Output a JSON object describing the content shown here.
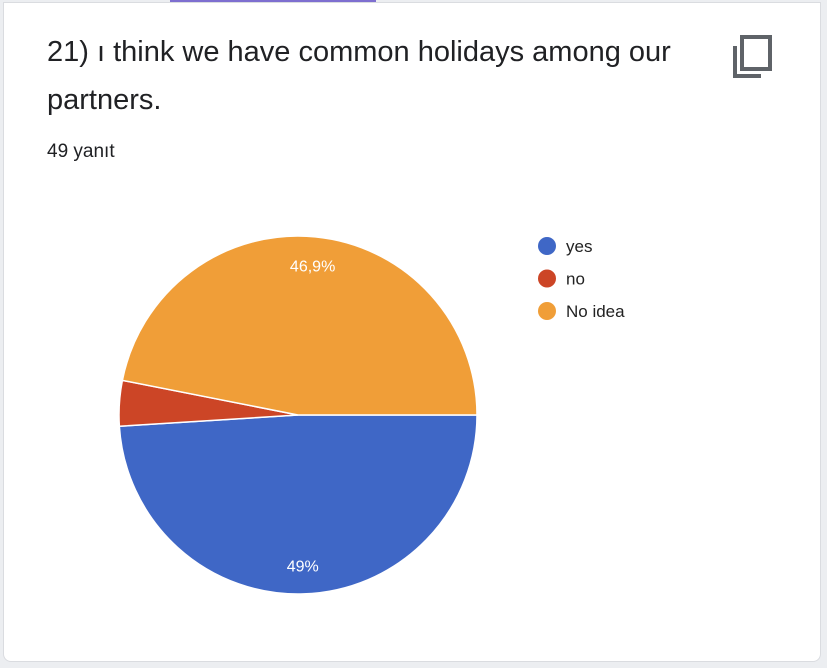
{
  "question": {
    "title": "21) ı think we have common holidays among our partners.",
    "response_count": "49 yanıt",
    "copy_icon": "copy-icon"
  },
  "chart_data": {
    "type": "pie",
    "categories": [
      "yes",
      "no",
      "No idea"
    ],
    "values": [
      49,
      4.1,
      46.9
    ],
    "labels": [
      "49%",
      "",
      "46,9%"
    ],
    "colors": [
      "#3f67c6",
      "#cc4526",
      "#f09e38"
    ],
    "legend": "right",
    "start": "3 o'clock, clockwise"
  }
}
